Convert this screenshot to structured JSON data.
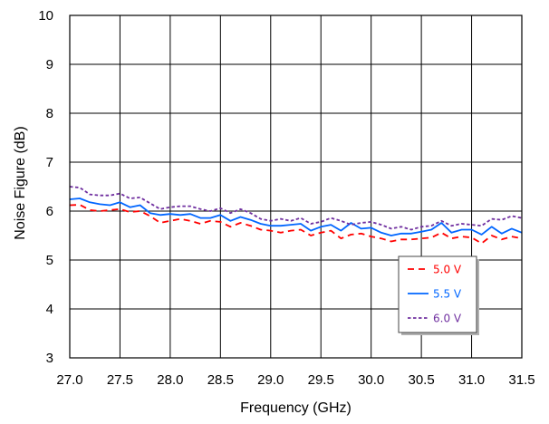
{
  "chart_data": {
    "type": "line",
    "xlabel": "Frequency (GHz)",
    "ylabel": "Noise Figure (dB)",
    "xlim": [
      27.0,
      31.5
    ],
    "ylim": [
      3,
      10
    ],
    "xticks": [
      27.0,
      27.5,
      28.0,
      28.5,
      29.0,
      29.5,
      30.0,
      30.5,
      31.0,
      31.5
    ],
    "xtick_labels": [
      "27.0",
      "27.5",
      "28.0",
      "28.5",
      "29.0",
      "29.5",
      "30.0",
      "30.5",
      "31.0",
      "31.5"
    ],
    "yticks": [
      3,
      4,
      5,
      6,
      7,
      8,
      9,
      10
    ],
    "ytick_labels": [
      "3",
      "4",
      "5",
      "6",
      "7",
      "8",
      "9",
      "10"
    ],
    "grid": true,
    "legend_position": "lower-right",
    "series": [
      {
        "name": "5.0 V",
        "color": "#ff0000",
        "dash": "dashed",
        "x": [
          27.0,
          27.1,
          27.2,
          27.3,
          27.4,
          27.5,
          27.6,
          27.7,
          27.8,
          27.9,
          28.0,
          28.1,
          28.2,
          28.3,
          28.4,
          28.5,
          28.6,
          28.7,
          28.8,
          28.9,
          29.0,
          29.1,
          29.2,
          29.3,
          29.4,
          29.5,
          29.6,
          29.7,
          29.8,
          29.9,
          30.0,
          30.1,
          30.2,
          30.3,
          30.4,
          30.5,
          30.6,
          30.7,
          30.8,
          30.9,
          31.0,
          31.1,
          31.2,
          31.3,
          31.4,
          31.5
        ],
        "y": [
          6.12,
          6.13,
          6.02,
          6.0,
          6.02,
          6.04,
          5.98,
          6.0,
          5.9,
          5.76,
          5.8,
          5.84,
          5.8,
          5.74,
          5.8,
          5.78,
          5.68,
          5.76,
          5.7,
          5.62,
          5.6,
          5.56,
          5.6,
          5.62,
          5.5,
          5.56,
          5.6,
          5.44,
          5.52,
          5.54,
          5.48,
          5.44,
          5.38,
          5.42,
          5.42,
          5.44,
          5.46,
          5.56,
          5.44,
          5.48,
          5.46,
          5.34,
          5.5,
          5.42,
          5.48,
          5.44
        ]
      },
      {
        "name": "5.5 V",
        "color": "#0066ff",
        "dash": "solid",
        "x": [
          27.0,
          27.1,
          27.2,
          27.3,
          27.4,
          27.5,
          27.6,
          27.7,
          27.8,
          27.9,
          28.0,
          28.1,
          28.2,
          28.3,
          28.4,
          28.5,
          28.6,
          28.7,
          28.8,
          28.9,
          29.0,
          29.1,
          29.2,
          29.3,
          29.4,
          29.5,
          29.6,
          29.7,
          29.8,
          29.9,
          30.0,
          30.1,
          30.2,
          30.3,
          30.4,
          30.5,
          30.6,
          30.7,
          30.8,
          30.9,
          31.0,
          31.1,
          31.2,
          31.3,
          31.4,
          31.5
        ],
        "y": [
          6.24,
          6.26,
          6.18,
          6.14,
          6.12,
          6.18,
          6.08,
          6.12,
          5.96,
          5.92,
          5.94,
          5.92,
          5.94,
          5.86,
          5.86,
          5.92,
          5.8,
          5.88,
          5.82,
          5.74,
          5.7,
          5.7,
          5.72,
          5.74,
          5.6,
          5.68,
          5.72,
          5.6,
          5.76,
          5.64,
          5.66,
          5.56,
          5.5,
          5.54,
          5.54,
          5.58,
          5.62,
          5.76,
          5.56,
          5.62,
          5.62,
          5.52,
          5.68,
          5.54,
          5.64,
          5.56
        ]
      },
      {
        "name": "6.0 V",
        "color": "#7030a0",
        "dash": "dotted",
        "x": [
          27.0,
          27.1,
          27.2,
          27.3,
          27.4,
          27.5,
          27.6,
          27.7,
          27.8,
          27.9,
          28.0,
          28.1,
          28.2,
          28.3,
          28.4,
          28.5,
          28.6,
          28.7,
          28.8,
          28.9,
          29.0,
          29.1,
          29.2,
          29.3,
          29.4,
          29.5,
          29.6,
          29.7,
          29.8,
          29.9,
          30.0,
          30.1,
          30.2,
          30.3,
          30.4,
          30.5,
          30.6,
          30.7,
          30.8,
          30.9,
          31.0,
          31.1,
          31.2,
          31.3,
          31.4,
          31.5
        ],
        "y": [
          6.5,
          6.48,
          6.34,
          6.32,
          6.32,
          6.36,
          6.26,
          6.28,
          6.16,
          6.04,
          6.08,
          6.1,
          6.1,
          6.04,
          6.0,
          6.06,
          5.96,
          6.04,
          5.96,
          5.84,
          5.8,
          5.84,
          5.8,
          5.86,
          5.74,
          5.78,
          5.86,
          5.8,
          5.72,
          5.76,
          5.78,
          5.72,
          5.64,
          5.68,
          5.62,
          5.68,
          5.7,
          5.8,
          5.7,
          5.74,
          5.72,
          5.7,
          5.84,
          5.82,
          5.9,
          5.86
        ]
      }
    ]
  }
}
